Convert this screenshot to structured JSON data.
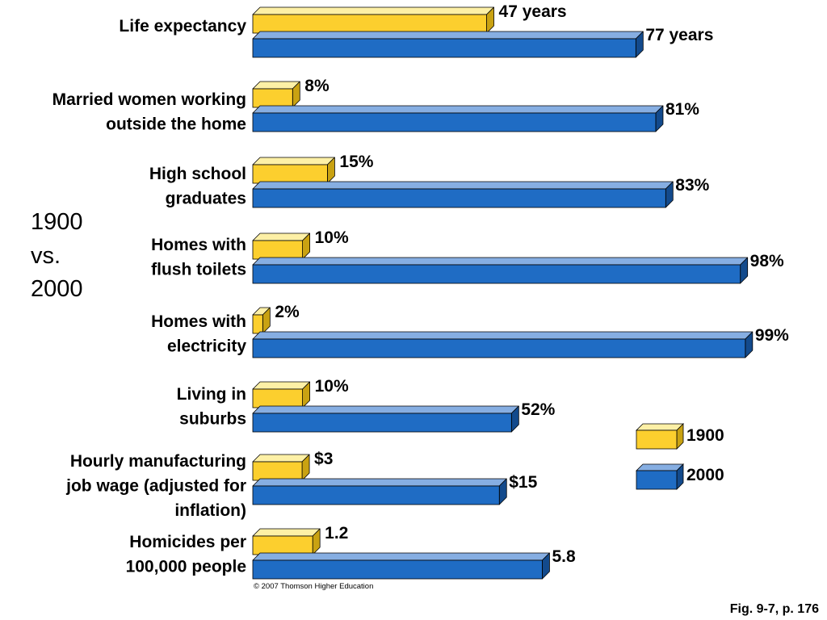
{
  "chart_data": {
    "type": "bar",
    "orientation": "horizontal",
    "side_label": [
      "1900",
      "vs.",
      "2000"
    ],
    "categories": [
      {
        "label_lines": [
          "Life expectancy"
        ],
        "v1900": 47,
        "v2000": 77,
        "label1900": "47 years",
        "label2000": "77 years"
      },
      {
        "label_lines": [
          "Married women working",
          "outside the home"
        ],
        "v1900": 8,
        "v2000": 81,
        "label1900": "8%",
        "label2000": "81%"
      },
      {
        "label_lines": [
          "High school",
          "graduates"
        ],
        "v1900": 15,
        "v2000": 83,
        "label1900": "15%",
        "label2000": "83%"
      },
      {
        "label_lines": [
          "Homes with",
          "flush toilets"
        ],
        "v1900": 10,
        "v2000": 98,
        "label1900": "10%",
        "label2000": "98%"
      },
      {
        "label_lines": [
          "Homes with",
          "electricity"
        ],
        "v1900": 2,
        "v2000": 99,
        "label1900": "2%",
        "label2000": "99%"
      },
      {
        "label_lines": [
          "Living in",
          "suburbs"
        ],
        "v1900": 10,
        "v2000": 52,
        "label1900": "10%",
        "label2000": "52%"
      },
      {
        "label_lines": [
          "Hourly manufacturing",
          "job wage (adjusted for",
          "inflation)"
        ],
        "v1900": 3,
        "v2000": 15,
        "label1900": "$3",
        "label2000": "$15"
      },
      {
        "label_lines": [
          "Homicides per",
          "100,000 people"
        ],
        "v1900": 1.2,
        "v2000": 5.8,
        "label1900": "1.2",
        "label2000": "5.8"
      }
    ],
    "series": [
      {
        "name": "1900",
        "color": "#FCCF2E",
        "top_color": "#FDF0A6",
        "side_color": "#C9A212"
      },
      {
        "name": "2000",
        "color": "#1F6CC4",
        "top_color": "#86AEE2",
        "side_color": "#134A8C"
      }
    ],
    "legend": {
      "position": "right",
      "items": [
        "1900",
        "2000"
      ]
    },
    "grid": false
  },
  "footer": {
    "copyright": "© 2007 Thomson Higher Education",
    "figure_ref": "Fig. 9-7, p. 176"
  }
}
